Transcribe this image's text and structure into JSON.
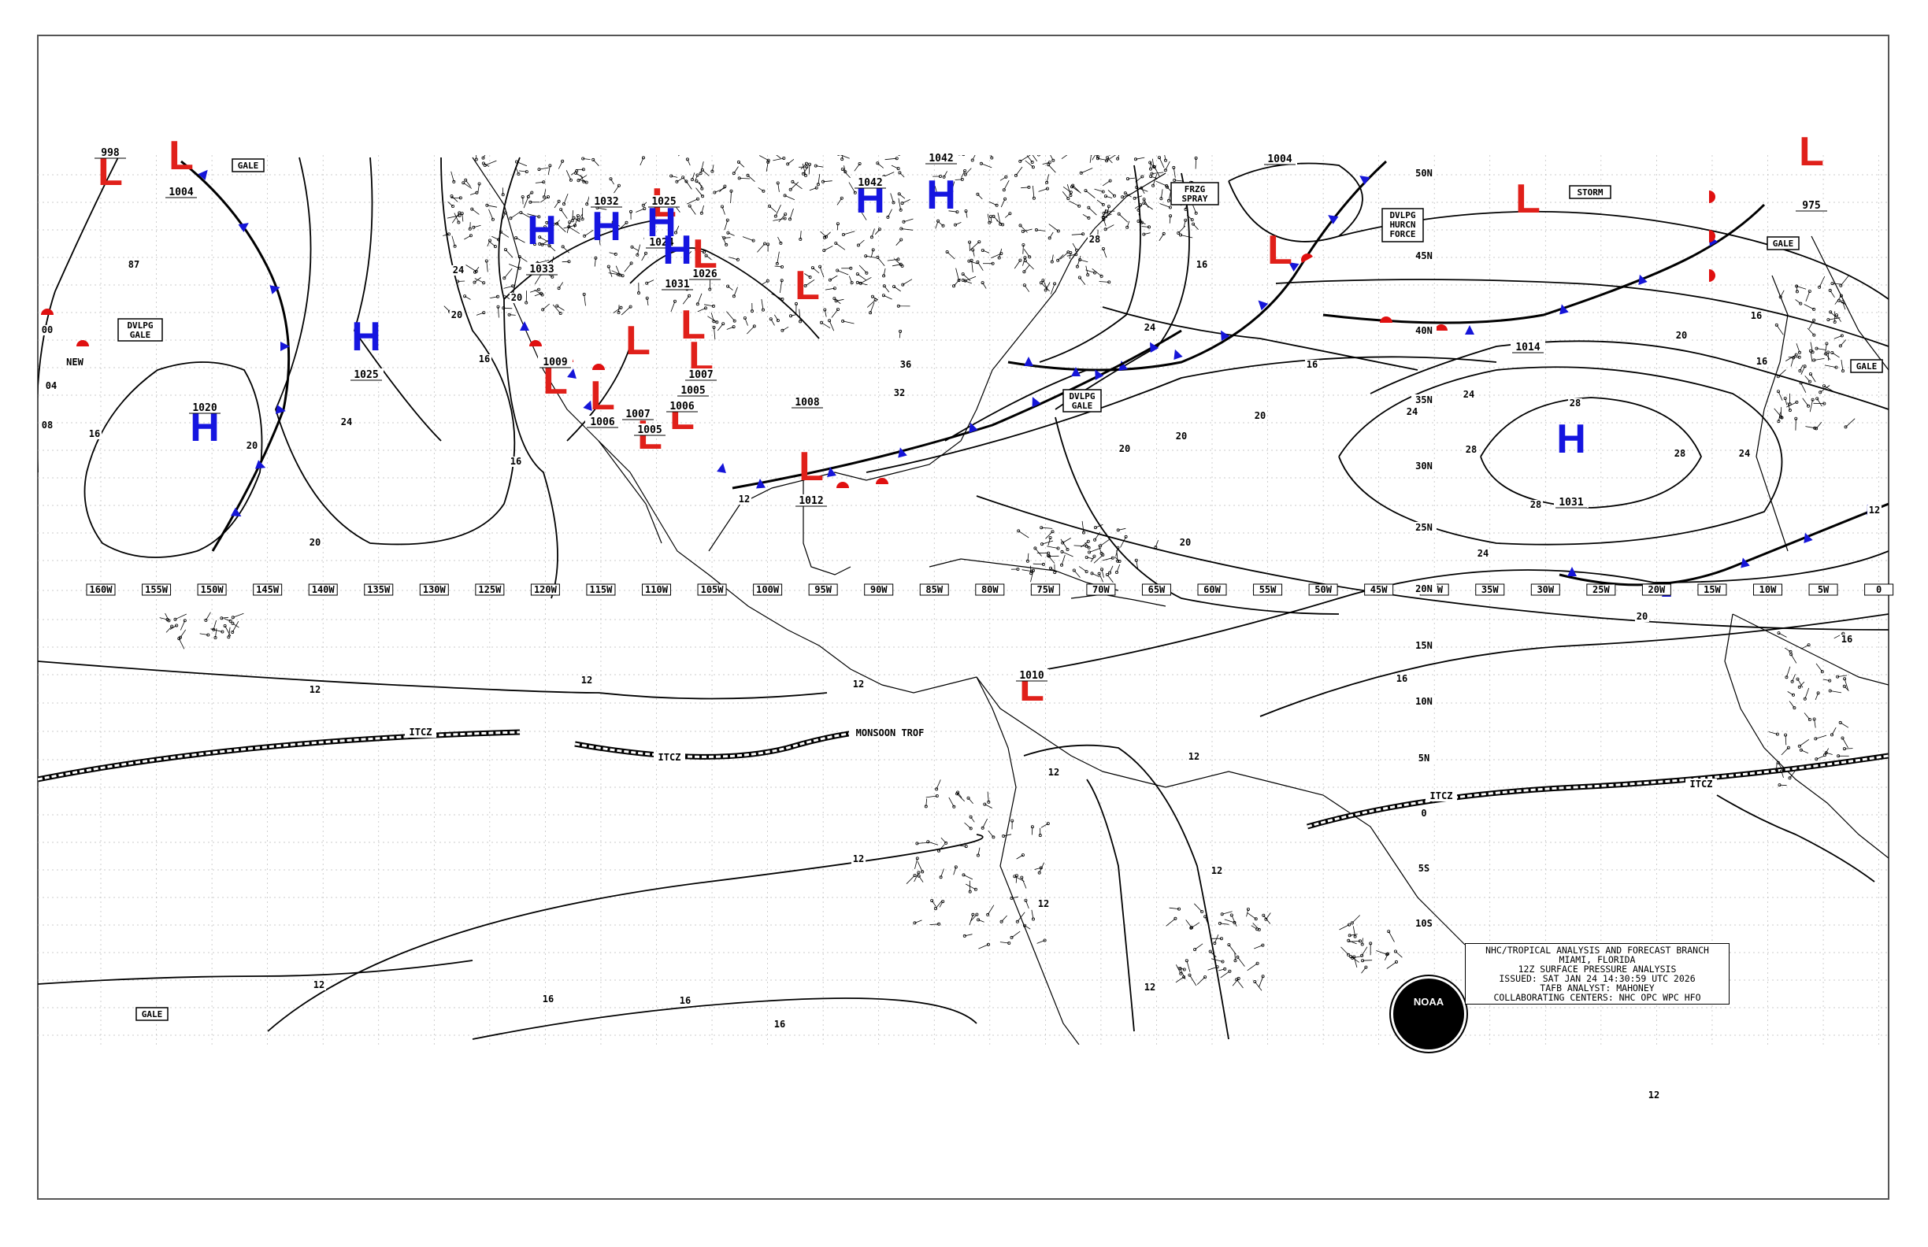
{
  "chart_title_lines": [
    "NHC/TROPICAL ANALYSIS AND FORECAST BRANCH",
    "MIAMI, FLORIDA",
    "12Z SURFACE PRESSURE ANALYSIS",
    "ISSUED: SAT JAN 24 14:30:59 UTC 2026",
    "TAFB ANALYST: MAHONEY",
    "COLLABORATING CENTERS: NHC OPC WPC HFO"
  ],
  "logo_text": "NOAA",
  "longitude_labels": [
    "160W",
    "155W",
    "150W",
    "145W",
    "140W",
    "135W",
    "130W",
    "125W",
    "120W",
    "115W",
    "110W",
    "105W",
    "100W",
    "95W",
    "90W",
    "85W",
    "80W",
    "75W",
    "70W",
    "65W",
    "60W",
    "55W",
    "50W",
    "45W",
    "40W",
    "35W",
    "30W",
    "25W",
    "20W",
    "15W",
    "10W",
    "5W",
    "0"
  ],
  "latitude_labels": [
    "50N",
    "45N",
    "40N",
    "35N",
    "30N",
    "25N",
    "20N",
    "15N",
    "10N",
    "5N",
    "0",
    "5S",
    "10S"
  ],
  "pressure_centers": [
    {
      "type": "L",
      "value": "998"
    },
    {
      "type": "L",
      "value": "1004"
    },
    {
      "type": "H",
      "value": "1020"
    },
    {
      "type": "H",
      "value": "1025"
    },
    {
      "type": "H",
      "value": "1033"
    },
    {
      "type": "H",
      "value": "1032"
    },
    {
      "type": "L",
      "value": "1025"
    },
    {
      "type": "H",
      "value": "1024"
    },
    {
      "type": "H",
      "value": "1031"
    },
    {
      "type": "L",
      "value": "1026"
    },
    {
      "type": "L",
      "value": "1009"
    },
    {
      "type": "L",
      "value": "1006"
    },
    {
      "type": "L",
      "value": "1007"
    },
    {
      "type": "L",
      "value": "1005"
    },
    {
      "type": "L",
      "value": "1007"
    },
    {
      "type": "L",
      "value": "1005"
    },
    {
      "type": "L",
      "value": "1006"
    },
    {
      "type": "H",
      "value": "1042"
    },
    {
      "type": "H",
      "value": "1042"
    },
    {
      "type": "L",
      "value": "1012"
    },
    {
      "type": "L",
      "value": "1010"
    },
    {
      "type": "L",
      "value": "1014"
    },
    {
      "type": "H",
      "value": "1031"
    },
    {
      "type": "L",
      "value": "975"
    },
    {
      "type": "L",
      "value": "1004"
    },
    {
      "type": "L",
      "value": "1008"
    }
  ],
  "isobar_labels": [
    "12",
    "16",
    "20",
    "24",
    "28",
    "32",
    "36",
    "87",
    "04",
    "08",
    "00"
  ],
  "warning_boxes": [
    "GALE",
    "DVLPG GALE",
    "DVLPG GALE",
    "FRZG SPRAY",
    "DVLPG HURCN FORCE",
    "STORM",
    "GALE",
    "GALE",
    "GALE"
  ],
  "feature_labels": [
    "ITCZ",
    "ITCZ",
    "ITCZ",
    "ITCZ",
    "MONSOON TROF",
    "NEW"
  ],
  "colors": {
    "low": "#e0201a",
    "high": "#1515e0",
    "cold_front": "#1515d8",
    "warm_front": "#e01010",
    "stationary": "#7020c0"
  }
}
